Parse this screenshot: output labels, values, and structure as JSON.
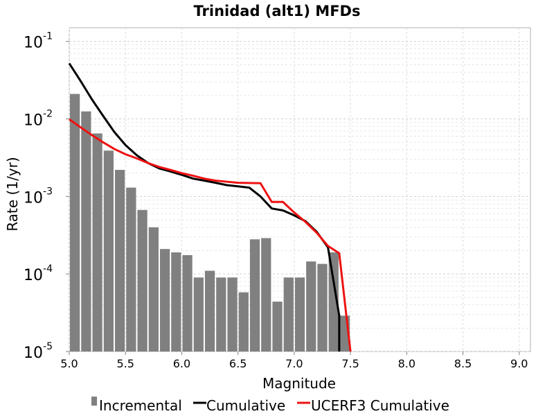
{
  "chart_data": {
    "type": "bar",
    "title": "Trinidad (alt1) MFDs",
    "xlabel": "Magnitude",
    "ylabel": "Rate (1/yr)",
    "xlim": [
      5.0,
      9.1
    ],
    "ylim": [
      1e-05,
      0.15
    ],
    "yscale": "log",
    "grid": true,
    "legend_position": "bottom",
    "x_ticks": [
      "5.0",
      "5.5",
      "6.0",
      "6.5",
      "7.0",
      "7.5",
      "8.0",
      "8.5",
      "9.0"
    ],
    "y_ticks": [
      {
        "base": "10",
        "exp": "-1"
      },
      {
        "base": "10",
        "exp": "-2"
      },
      {
        "base": "10",
        "exp": "-3"
      },
      {
        "base": "10",
        "exp": "-4"
      },
      {
        "base": "10",
        "exp": "-5"
      }
    ],
    "series": [
      {
        "name": "Incremental",
        "kind": "bar",
        "color": "#808080",
        "x": [
          5.05,
          5.15,
          5.25,
          5.35,
          5.45,
          5.55,
          5.65,
          5.75,
          5.85,
          5.95,
          6.05,
          6.15,
          6.25,
          6.35,
          6.45,
          6.55,
          6.65,
          6.75,
          6.85,
          6.95,
          7.05,
          7.15,
          7.25,
          7.35,
          7.45
        ],
        "values": [
          0.021,
          0.0125,
          0.0065,
          0.0039,
          0.0022,
          0.0013,
          0.00067,
          0.0004,
          0.00021,
          0.00019,
          0.000175,
          9e-05,
          0.00011,
          9e-05,
          9e-05,
          5.8e-05,
          0.00028,
          0.00029,
          4.4e-05,
          9e-05,
          9e-05,
          0.000145,
          0.000135,
          0.00019,
          2.9e-05
        ]
      },
      {
        "name": "Cumulative",
        "kind": "line",
        "color": "#000000",
        "x": [
          5.0,
          5.1,
          5.2,
          5.3,
          5.4,
          5.5,
          5.6,
          5.7,
          5.8,
          5.9,
          6.0,
          6.1,
          6.2,
          6.3,
          6.4,
          6.5,
          6.6,
          6.7,
          6.8,
          6.9,
          7.0,
          7.1,
          7.2,
          7.3,
          7.4,
          7.4
        ],
        "values": [
          0.052,
          0.031,
          0.018,
          0.011,
          0.0068,
          0.0046,
          0.0034,
          0.0027,
          0.0023,
          0.0021,
          0.0019,
          0.0017,
          0.0016,
          0.0015,
          0.0014,
          0.00135,
          0.0013,
          0.001,
          0.0007,
          0.00066,
          0.00057,
          0.00048,
          0.00035,
          0.00022,
          2.9e-05,
          1e-05
        ]
      },
      {
        "name": "UCERF3 Cumulative",
        "kind": "line",
        "color": "#ee1111",
        "x": [
          5.0,
          5.1,
          5.2,
          5.3,
          5.4,
          5.5,
          5.6,
          5.7,
          5.8,
          5.9,
          6.0,
          6.1,
          6.2,
          6.3,
          6.4,
          6.5,
          6.7,
          6.8,
          6.9,
          7.0,
          7.1,
          7.2,
          7.3,
          7.4,
          7.5
        ],
        "values": [
          0.0099,
          0.0078,
          0.0062,
          0.005,
          0.0041,
          0.0035,
          0.0031,
          0.0027,
          0.0024,
          0.0022,
          0.002,
          0.00185,
          0.0017,
          0.0016,
          0.00155,
          0.0015,
          0.00148,
          0.00085,
          0.00085,
          0.00062,
          0.00047,
          0.00034,
          0.00023,
          0.000185,
          1e-05
        ]
      }
    ]
  }
}
